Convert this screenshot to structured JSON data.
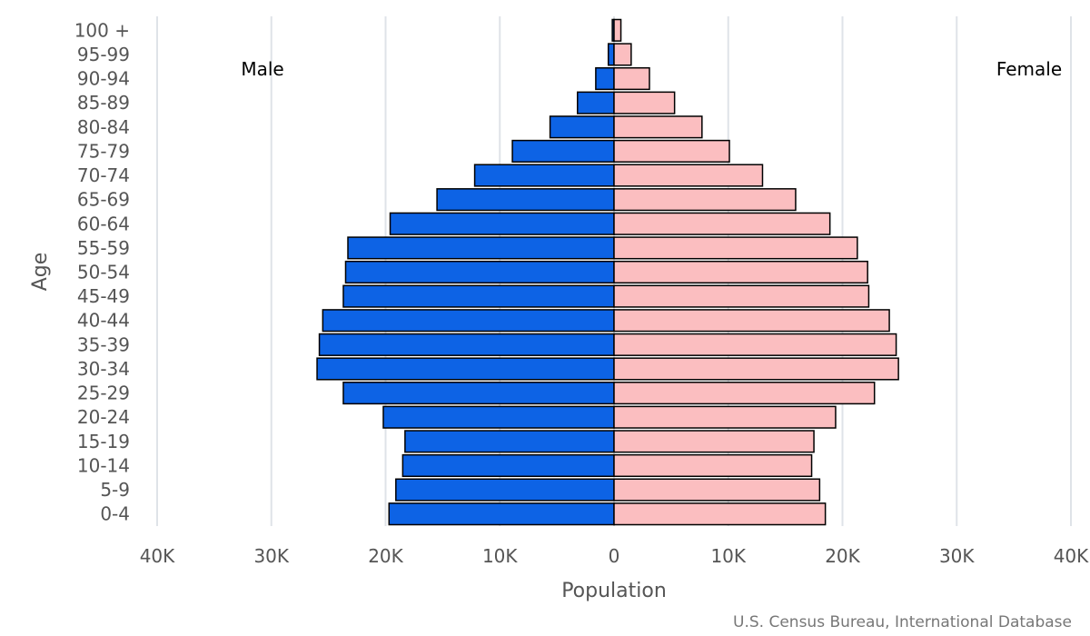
{
  "chart_data": {
    "type": "bar",
    "orientation": "horizontal",
    "layout": "population-pyramid",
    "categories": [
      "0-4",
      "5-9",
      "10-14",
      "15-19",
      "20-24",
      "25-29",
      "30-34",
      "35-39",
      "40-44",
      "45-49",
      "50-54",
      "55-59",
      "60-64",
      "65-69",
      "70-74",
      "75-79",
      "80-84",
      "85-89",
      "90-94",
      "95-99",
      "100 +"
    ],
    "series": [
      {
        "name": "Male",
        "side": "left",
        "color": "#0d63e5",
        "values": [
          19700,
          19100,
          18500,
          18300,
          20200,
          23700,
          26000,
          25800,
          25500,
          23700,
          23500,
          23300,
          19600,
          15500,
          12200,
          8900,
          5600,
          3200,
          1600,
          500,
          150
        ]
      },
      {
        "name": "Female",
        "side": "right",
        "color": "#fbbec0",
        "values": [
          18500,
          18000,
          17300,
          17500,
          19400,
          22800,
          24900,
          24700,
          24100,
          22300,
          22200,
          21300,
          18900,
          15900,
          13000,
          10100,
          7700,
          5300,
          3100,
          1500,
          600
        ]
      }
    ],
    "xlabel": "Population",
    "ylabel": "Age",
    "xlim": [
      -40000,
      40000
    ],
    "x_ticks": [
      -40000,
      -30000,
      -20000,
      -10000,
      0,
      10000,
      20000,
      30000,
      40000
    ],
    "x_tick_labels": [
      "40K",
      "30K",
      "20K",
      "10K",
      "0",
      "10K",
      "20K",
      "30K",
      "40K"
    ],
    "grid": true,
    "credit": "U.S. Census Bureau, International Database"
  }
}
